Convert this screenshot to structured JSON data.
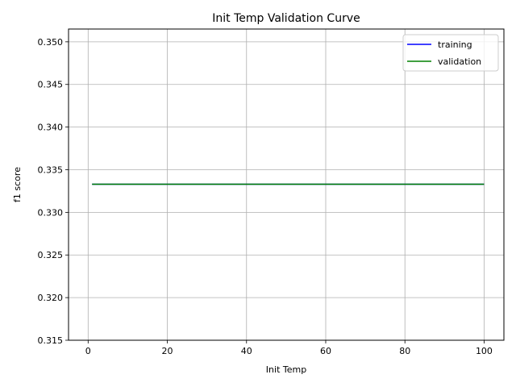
{
  "chart_data": {
    "type": "line",
    "title": "Init Temp Validation Curve",
    "xlabel": "Init Temp",
    "ylabel": "f1 score",
    "xlim": [
      -4.95,
      105
    ],
    "ylim": [
      0.315,
      0.3515
    ],
    "xticks": [
      0,
      20,
      40,
      60,
      80,
      100
    ],
    "xtick_labels": [
      "0",
      "20",
      "40",
      "60",
      "80",
      "100"
    ],
    "yticks": [
      0.315,
      0.32,
      0.325,
      0.33,
      0.335,
      0.34,
      0.345,
      0.35
    ],
    "ytick_labels": [
      "0.315",
      "0.320",
      "0.325",
      "0.330",
      "0.335",
      "0.340",
      "0.345",
      "0.350"
    ],
    "grid": true,
    "legend_position": "top-right",
    "series": [
      {
        "name": "training",
        "color": "#0000ff",
        "x": [
          1,
          100
        ],
        "y": [
          0.3333,
          0.3333
        ]
      },
      {
        "name": "validation",
        "color": "#008000",
        "x": [
          1,
          100
        ],
        "y": [
          0.3333,
          0.3333
        ]
      }
    ]
  }
}
